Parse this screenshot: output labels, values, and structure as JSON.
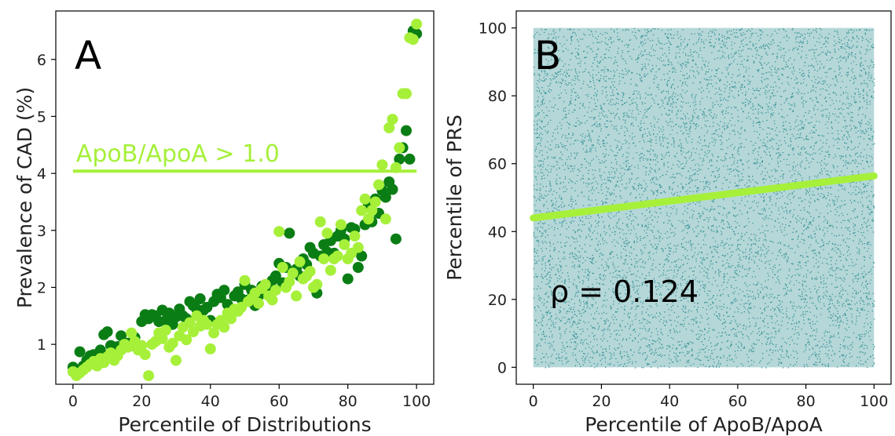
{
  "colors": {
    "dark_green": "#0a7d14",
    "light_green": "#a6f03a",
    "scatter_teal": "#2a8c8f",
    "axis": "#000000"
  },
  "chart_data": [
    {
      "panel": "A",
      "type": "scatter",
      "xlabel": "Percentile of Distributions",
      "ylabel": "Prevalence of CAD (%)",
      "xlim": [
        -5,
        105
      ],
      "ylim": [
        0.3,
        6.85
      ],
      "xticks": [
        0,
        20,
        40,
        60,
        80,
        100
      ],
      "yticks": [
        1,
        2,
        3,
        4,
        5,
        6
      ],
      "hline": {
        "y": 4.04,
        "x_range": [
          0,
          100
        ],
        "label": "ApoB/ApoA > 1.0",
        "color": "#a6f03a"
      },
      "series": [
        {
          "color": "#0a7d14",
          "x": [
            0,
            1,
            2,
            3,
            4,
            5,
            6,
            7,
            8,
            9,
            10,
            11,
            12,
            13,
            14,
            15,
            16,
            17,
            18,
            19,
            20,
            21,
            22,
            23,
            24,
            25,
            26,
            27,
            28,
            29,
            30,
            31,
            32,
            33,
            34,
            35,
            36,
            37,
            38,
            39,
            40,
            41,
            42,
            43,
            44,
            45,
            46,
            47,
            48,
            49,
            50,
            51,
            52,
            53,
            54,
            55,
            56,
            57,
            58,
            59,
            60,
            61,
            62,
            63,
            64,
            65,
            66,
            67,
            68,
            69,
            70,
            71,
            72,
            73,
            74,
            75,
            76,
            77,
            78,
            79,
            80,
            81,
            82,
            83,
            84,
            85,
            86,
            87,
            88,
            89,
            90,
            91,
            92,
            93,
            94,
            95,
            96,
            97,
            98,
            99,
            100
          ],
          "values": [
            0.6,
            0.55,
            0.87,
            0.62,
            0.72,
            0.8,
            0.82,
            0.75,
            0.9,
            1.17,
            1.22,
            0.98,
            0.92,
            0.96,
            1.15,
            0.95,
            1.02,
            0.98,
            1.12,
            0.98,
            1.4,
            1.52,
            1.45,
            1.52,
            1.5,
            1.4,
            1.6,
            1.42,
            1.55,
            1.35,
            1.48,
            1.62,
            1.5,
            1.45,
            1.75,
            1.68,
            1.62,
            1.8,
            1.6,
            1.65,
            1.42,
            1.75,
            1.88,
            1.82,
            1.95,
            1.7,
            1.62,
            1.85,
            1.92,
            1.8,
            2.05,
            1.78,
            1.95,
            1.68,
            1.85,
            2.02,
            1.9,
            1.98,
            2.12,
            2.2,
            2.42,
            2.08,
            2.35,
            2.95,
            2.25,
            2.32,
            2.2,
            2.5,
            2.4,
            2.7,
            2.6,
            1.9,
            2.55,
            2.75,
            2.62,
            2.82,
            2.6,
            2.9,
            3.0,
            2.85,
            2.15,
            3.05,
            3.02,
            2.35,
            2.55,
            3.1,
            3.45,
            3.15,
            3.55,
            3.3,
            3.7,
            3.58,
            3.85,
            3.72,
            2.85,
            4.25,
            4.45,
            4.75,
            4.25,
            6.5,
            6.45
          ]
        },
        {
          "color": "#a6f03a",
          "x": [
            0,
            1,
            2,
            3,
            4,
            5,
            6,
            7,
            8,
            9,
            10,
            11,
            12,
            13,
            14,
            15,
            16,
            17,
            18,
            19,
            20,
            21,
            22,
            23,
            24,
            25,
            26,
            27,
            28,
            29,
            30,
            31,
            32,
            33,
            34,
            35,
            36,
            37,
            38,
            39,
            40,
            41,
            42,
            43,
            44,
            45,
            46,
            47,
            48,
            49,
            50,
            51,
            52,
            53,
            54,
            55,
            56,
            57,
            58,
            59,
            60,
            61,
            62,
            63,
            64,
            65,
            66,
            67,
            68,
            69,
            70,
            71,
            72,
            73,
            74,
            75,
            76,
            77,
            78,
            79,
            80,
            81,
            82,
            83,
            84,
            85,
            86,
            87,
            88,
            89,
            90,
            91,
            92,
            93,
            94,
            95,
            96,
            97,
            98,
            99,
            100
          ],
          "values": [
            0.52,
            0.45,
            0.5,
            0.55,
            0.6,
            0.65,
            0.7,
            0.62,
            0.75,
            0.68,
            0.78,
            0.85,
            0.72,
            0.8,
            0.9,
            1.0,
            0.95,
            1.2,
            1.05,
            0.9,
            0.98,
            0.82,
            0.45,
            1.0,
            1.05,
            1.2,
            1.1,
            1.25,
            0.95,
            1.02,
            0.72,
            1.15,
            1.3,
            1.08,
            1.38,
            1.22,
            1.5,
            1.32,
            1.42,
            1.35,
            0.92,
            1.2,
            1.35,
            1.42,
            1.3,
            1.55,
            1.45,
            1.62,
            1.58,
            1.65,
            2.12,
            1.75,
            1.8,
            1.9,
            1.72,
            1.98,
            2.05,
            1.85,
            1.78,
            1.95,
            2.98,
            2.35,
            2.0,
            2.1,
            2.25,
            1.85,
            2.45,
            2.15,
            2.2,
            2.28,
            2.0,
            2.05,
            3.15,
            2.5,
            2.95,
            2.3,
            2.5,
            2.55,
            3.1,
            2.75,
            2.5,
            2.6,
            2.9,
            2.7,
            3.35,
            3.55,
            3.2,
            3.35,
            3.5,
            3.8,
            4.15,
            3.2,
            4.8,
            4.95,
            4.1,
            4.45,
            5.4,
            5.4,
            6.38,
            6.35,
            6.62
          ]
        }
      ]
    },
    {
      "panel": "B",
      "type": "scatter",
      "xlabel": "Percentile of ApoB/ApoA",
      "ylabel": "Percentile of PRS",
      "xlim": [
        -5,
        105
      ],
      "ylim": [
        -5,
        105
      ],
      "xticks": [
        0,
        20,
        40,
        60,
        80,
        100
      ],
      "yticks": [
        0,
        20,
        40,
        60,
        80,
        100
      ],
      "scatter": {
        "description": "dense uniform cloud over [0,100] x [0,100]",
        "color": "#2a8c8f"
      },
      "fit_line": {
        "x": [
          0,
          100
        ],
        "y": [
          44.0,
          56.4
        ],
        "color": "#a6f03a"
      },
      "annotation": "ρ = 0.124"
    }
  ]
}
